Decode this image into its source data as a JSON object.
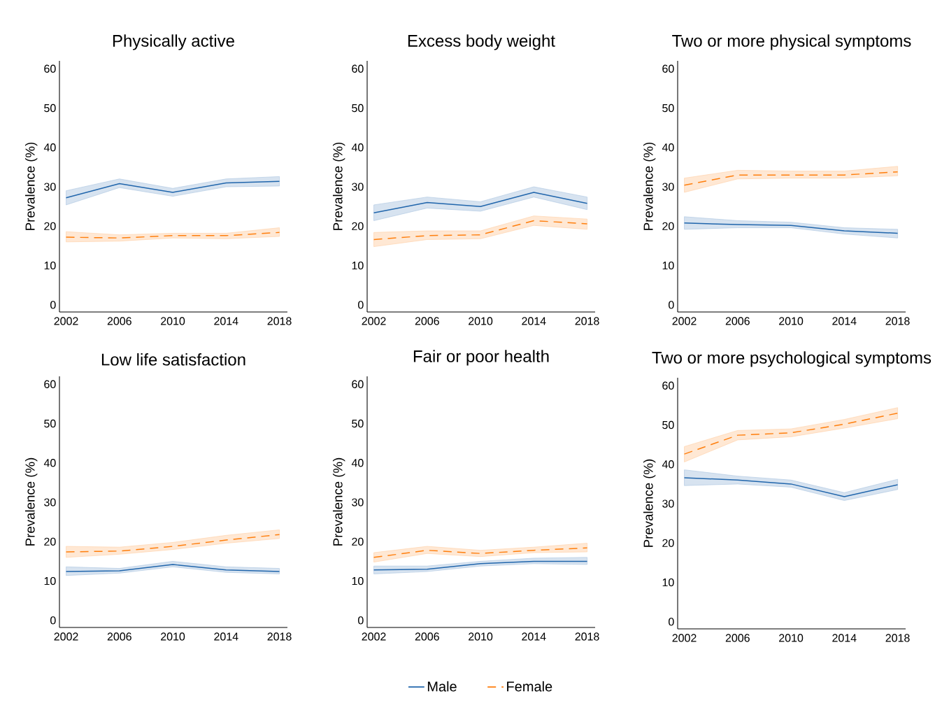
{
  "chart_data": [
    {
      "type": "line",
      "title": "Physically active",
      "ylabel": "Prevalence (%)",
      "x": [
        2002,
        2006,
        2010,
        2014,
        2018
      ],
      "xlim": [
        2001.5,
        2018.6
      ],
      "xticks": [
        2002,
        2006,
        2010,
        2014,
        2018
      ],
      "ylim": [
        -1.8,
        62
      ],
      "yticks": [
        0,
        10,
        20,
        30,
        40,
        50,
        60
      ],
      "grid": false,
      "marker": "none",
      "series": [
        {
          "color": "#2166ac",
          "line_style": "solid",
          "values": [
            27.2,
            30.8,
            28.6,
            31.0,
            31.4
          ],
          "lower": [
            25.4,
            29.8,
            27.6,
            30.0,
            30.2
          ],
          "upper": [
            29.0,
            32.0,
            29.6,
            32.0,
            32.6
          ]
        },
        {
          "color": "#ff7f0e",
          "line_style": "dashed",
          "values": [
            17.2,
            17.0,
            17.6,
            17.6,
            18.4
          ],
          "lower": [
            16.0,
            16.2,
            17.0,
            16.8,
            17.4
          ],
          "upper": [
            18.6,
            17.8,
            18.2,
            18.2,
            19.6
          ]
        }
      ]
    },
    {
      "type": "line",
      "title": "Excess body weight",
      "ylabel": "Prevalence (%)",
      "x": [
        2002,
        2006,
        2010,
        2014,
        2018
      ],
      "xlim": [
        2001.5,
        2018.6
      ],
      "xticks": [
        2002,
        2006,
        2010,
        2014,
        2018
      ],
      "ylim": [
        -1.8,
        62
      ],
      "yticks": [
        0,
        10,
        20,
        30,
        40,
        50,
        60
      ],
      "grid": false,
      "marker": "none",
      "series": [
        {
          "color": "#2166ac",
          "line_style": "solid",
          "values": [
            23.4,
            26.0,
            25.0,
            28.6,
            25.8
          ],
          "lower": [
            21.4,
            24.6,
            23.8,
            27.4,
            24.2
          ],
          "upper": [
            25.4,
            27.4,
            26.2,
            30.0,
            27.4
          ]
        },
        {
          "color": "#ff7f0e",
          "line_style": "dashed",
          "values": [
            16.6,
            17.6,
            17.8,
            21.4,
            20.6
          ],
          "lower": [
            14.8,
            16.6,
            16.8,
            20.2,
            19.2
          ],
          "upper": [
            18.4,
            18.8,
            18.8,
            22.6,
            21.8
          ]
        }
      ]
    },
    {
      "type": "line",
      "title": "Two or more physical symptoms",
      "ylabel": "Prevalence (%)",
      "x": [
        2002,
        2006,
        2010,
        2014,
        2018
      ],
      "xlim": [
        2001.5,
        2018.6
      ],
      "xticks": [
        2002,
        2006,
        2010,
        2014,
        2018
      ],
      "ylim": [
        -1.8,
        62
      ],
      "yticks": [
        0,
        10,
        20,
        30,
        40,
        50,
        60
      ],
      "grid": false,
      "marker": "none",
      "series": [
        {
          "color": "#2166ac",
          "line_style": "solid",
          "values": [
            20.8,
            20.4,
            20.2,
            18.8,
            18.2
          ],
          "lower": [
            19.2,
            19.6,
            19.6,
            18.0,
            17.0
          ],
          "upper": [
            22.4,
            21.4,
            21.0,
            19.6,
            19.2
          ]
        },
        {
          "color": "#ff7f0e",
          "line_style": "dashed",
          "values": [
            30.4,
            33.0,
            33.0,
            33.0,
            33.8
          ],
          "lower": [
            28.6,
            32.0,
            32.2,
            32.2,
            32.8
          ],
          "upper": [
            32.2,
            34.2,
            34.0,
            34.0,
            35.2
          ]
        }
      ]
    },
    {
      "type": "line",
      "title": "Low life satisfaction",
      "ylabel": "Prevalence (%)",
      "x": [
        2002,
        2006,
        2010,
        2014,
        2018
      ],
      "xlim": [
        2001.5,
        2018.6
      ],
      "xticks": [
        2002,
        2006,
        2010,
        2014,
        2018
      ],
      "ylim": [
        -1.8,
        62
      ],
      "yticks": [
        0,
        10,
        20,
        30,
        40,
        50,
        60
      ],
      "grid": false,
      "marker": "none",
      "series": [
        {
          "color": "#2166ac",
          "line_style": "solid",
          "values": [
            12.4,
            12.6,
            14.2,
            12.8,
            12.4
          ],
          "lower": [
            11.4,
            12.0,
            13.6,
            12.2,
            11.8
          ],
          "upper": [
            13.6,
            13.2,
            15.0,
            13.6,
            13.2
          ]
        },
        {
          "color": "#ff7f0e",
          "line_style": "dashed",
          "values": [
            17.4,
            17.6,
            18.8,
            20.4,
            21.8
          ],
          "lower": [
            16.0,
            16.8,
            18.0,
            19.6,
            20.8
          ],
          "upper": [
            18.8,
            18.6,
            19.8,
            21.6,
            23.0
          ]
        }
      ]
    },
    {
      "type": "line",
      "title": "Fair or poor health",
      "ylabel": "Prevalence (%)",
      "x": [
        2002,
        2006,
        2010,
        2014,
        2018
      ],
      "xlim": [
        2001.5,
        2018.6
      ],
      "xticks": [
        2002,
        2006,
        2010,
        2014,
        2018
      ],
      "ylim": [
        -1.8,
        62
      ],
      "yticks": [
        0,
        10,
        20,
        30,
        40,
        50,
        60
      ],
      "grid": false,
      "marker": "none",
      "legend": "bottom",
      "series": [
        {
          "name": "Male",
          "color": "#2166ac",
          "line_style": "solid",
          "values": [
            12.8,
            13.0,
            14.4,
            15.0,
            15.0
          ],
          "lower": [
            11.8,
            12.4,
            13.8,
            14.4,
            14.2
          ],
          "upper": [
            13.8,
            13.8,
            15.0,
            15.8,
            16.0
          ]
        },
        {
          "name": "Female",
          "color": "#ff7f0e",
          "line_style": "dashed",
          "values": [
            16.0,
            17.8,
            17.0,
            17.8,
            18.4
          ],
          "lower": [
            14.8,
            17.0,
            16.2,
            17.2,
            17.4
          ],
          "upper": [
            17.2,
            18.8,
            17.8,
            18.6,
            19.6
          ]
        }
      ]
    },
    {
      "type": "line",
      "title": "Two or more psychological symptoms",
      "ylabel": "Prevalence (%)",
      "x": [
        2002,
        2006,
        2010,
        2014,
        2018
      ],
      "xlim": [
        2001.5,
        2018.6
      ],
      "xticks": [
        2002,
        2006,
        2010,
        2014,
        2018
      ],
      "ylim": [
        -1.8,
        62
      ],
      "yticks": [
        0,
        10,
        20,
        30,
        40,
        50,
        60
      ],
      "grid": false,
      "marker": "none",
      "series": [
        {
          "color": "#2166ac",
          "line_style": "solid",
          "values": [
            36.6,
            36.0,
            35.0,
            31.8,
            34.8
          ],
          "lower": [
            34.6,
            35.0,
            34.2,
            30.8,
            33.6
          ],
          "upper": [
            38.6,
            37.0,
            36.0,
            32.8,
            36.2
          ]
        },
        {
          "color": "#ff7f0e",
          "line_style": "dashed",
          "values": [
            42.6,
            47.4,
            48.0,
            50.2,
            53.0
          ],
          "lower": [
            40.6,
            46.2,
            47.0,
            49.2,
            51.6
          ],
          "upper": [
            44.5,
            48.6,
            49.0,
            51.4,
            54.4
          ]
        }
      ]
    }
  ]
}
